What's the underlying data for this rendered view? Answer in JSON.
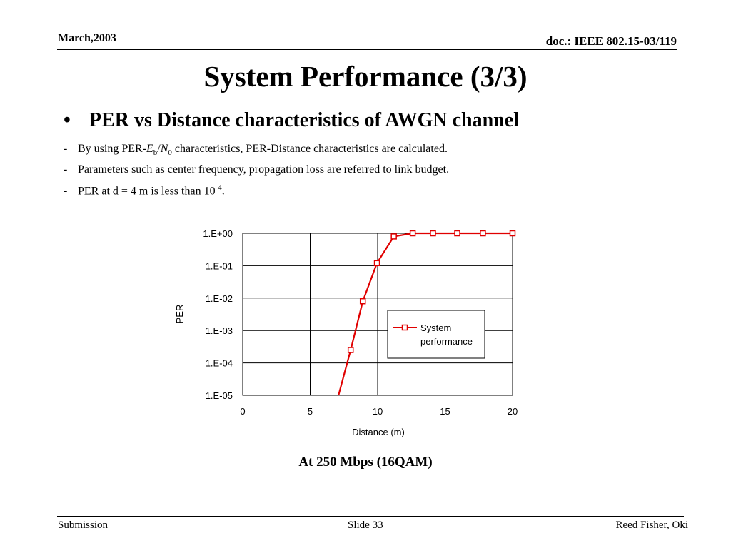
{
  "header": {
    "date": "March,2003",
    "doc": "doc.: IEEE 802.15-03/119"
  },
  "title": "System Performance (3/3)",
  "bullet": {
    "marker": "•",
    "text": "PER vs Distance characteristics of AWGN channel"
  },
  "subs": [
    {
      "dash": "-",
      "pre": "By using PER-",
      "e": "E",
      "e_sub": "b",
      "slash": "/",
      "n": "N",
      "n_sub": "0",
      "post": " characteristics, PER-Distance characteristics are calculated."
    },
    {
      "dash": "-",
      "text": "Parameters such as center frequency, propagation loss are referred to link budget."
    },
    {
      "dash": "-",
      "pre": "PER at d = 4 m is less than 10",
      "sup": "-4",
      "post": "."
    }
  ],
  "chart_data": {
    "type": "line",
    "xlabel": "Distance (m)",
    "ylabel": "PER",
    "xlim": [
      0,
      20
    ],
    "ylim_log10": [
      -5,
      0
    ],
    "y_scale": "log",
    "x_ticks": [
      "0",
      "5",
      "10",
      "15",
      "20"
    ],
    "y_ticks": [
      "1.E+00",
      "1.E-01",
      "1.E-02",
      "1.E-03",
      "1.E-04",
      "1.E-05"
    ],
    "grid": true,
    "legend_position": "center-right",
    "series": [
      {
        "name": "System performance",
        "legend_lines": [
          "System",
          "performance"
        ],
        "color": "#e00000",
        "x": [
          7.1,
          8.0,
          8.9,
          9.95,
          11.2,
          12.6,
          14.1,
          15.9,
          17.8,
          20.0
        ],
        "y": [
          1e-05,
          0.00025,
          0.008,
          0.12,
          0.8,
          1,
          1,
          1,
          1,
          1
        ],
        "marker_from_index": 1
      }
    ]
  },
  "caption": "At 250 Mbps (16QAM)",
  "footer": {
    "left": "Submission",
    "center": "Slide 33",
    "right": "Reed Fisher,  Oki"
  }
}
